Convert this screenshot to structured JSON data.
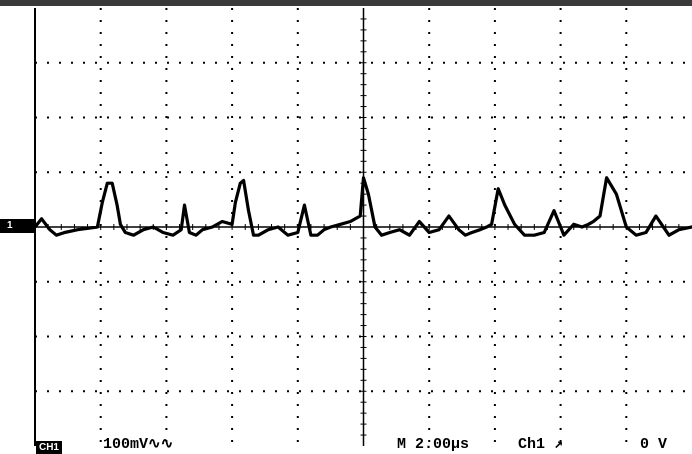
{
  "screen": {
    "channel_marker": "1",
    "readout": {
      "channel_badge": "CH1",
      "volts_per_div": "100mV",
      "bandwidth_symbol": "∿∿",
      "timebase": "M 2.00µs",
      "trigger_source": "Ch1",
      "trigger_slope_symbol": "↗",
      "trigger_level": "0 V"
    },
    "grid": {
      "divisions_x": 10,
      "divisions_y": 8,
      "visible": true
    },
    "colors": {
      "background": "#ffffff",
      "trace": "#000000",
      "grid": "#000000",
      "top_bar": "#3a3a3a"
    }
  },
  "chart_data": {
    "type": "line",
    "title": "",
    "xlabel": "",
    "ylabel": "",
    "x_unit": "us",
    "y_unit": "mV",
    "xlim": [
      0,
      20
    ],
    "ylim": [
      -400,
      400
    ],
    "series": [
      {
        "values_x": [
          0,
          0.2,
          0.45,
          0.65,
          0.9,
          1.3,
          1.9,
          2.05,
          2.2,
          2.35,
          2.5,
          2.6,
          2.75,
          3.0,
          3.3,
          3.6,
          3.9,
          4.2,
          4.45,
          4.55,
          4.7,
          4.9,
          5.1,
          5.4,
          5.7,
          6.0,
          6.1,
          6.25,
          6.35,
          6.5,
          6.65,
          6.8,
          7.1,
          7.4,
          7.7,
          8.0,
          8.2,
          8.4,
          8.6,
          8.8,
          9.0,
          9.3,
          9.6,
          9.9,
          10.0,
          10.15,
          10.35,
          10.55,
          10.8,
          11.1,
          11.4,
          11.7,
          12.0,
          12.3,
          12.6,
          12.9,
          13.1,
          13.3,
          13.55,
          13.75,
          13.9,
          14.1,
          14.3,
          14.6,
          14.9,
          15.2,
          15.5,
          15.8,
          16.1,
          16.4,
          16.65,
          16.85,
          17.0,
          17.2,
          17.4,
          17.7,
          18.0,
          18.3,
          18.6,
          18.9,
          19.3,
          19.6,
          20.0
        ],
        "values_y": [
          0,
          15,
          -5,
          -15,
          -10,
          -5,
          0,
          45,
          80,
          80,
          40,
          5,
          -10,
          -15,
          -5,
          0,
          -10,
          -15,
          -5,
          40,
          -10,
          -15,
          -5,
          0,
          10,
          5,
          45,
          80,
          85,
          30,
          -15,
          -15,
          -5,
          0,
          -15,
          -10,
          40,
          -15,
          -15,
          -5,
          0,
          5,
          10,
          20,
          90,
          60,
          0,
          -15,
          -10,
          -5,
          -15,
          10,
          -10,
          -5,
          20,
          -5,
          -15,
          -10,
          -5,
          0,
          5,
          70,
          40,
          5,
          -15,
          -15,
          -10,
          30,
          -15,
          5,
          0,
          5,
          10,
          20,
          90,
          60,
          0,
          -15,
          -10,
          20,
          -15,
          -5,
          0
        ]
      }
    ]
  }
}
